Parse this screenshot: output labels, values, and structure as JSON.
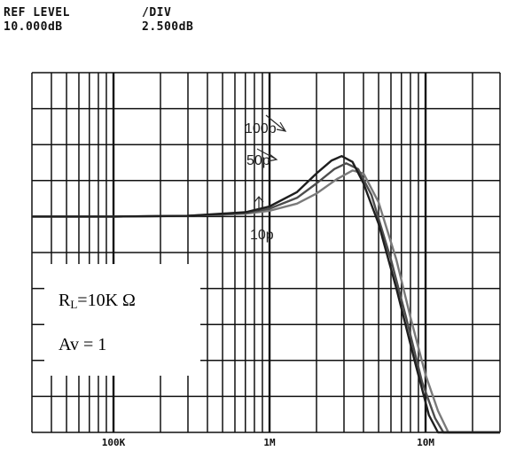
{
  "header": {
    "ref_level_label": "REF LEVEL",
    "ref_level_value": "10.000dB",
    "div_label": "/DIV",
    "div_value": "2.500dB"
  },
  "annotation": {
    "rl_symbol": "R",
    "rl_sub": "L",
    "rl_value": "=10K Ω",
    "av_text": "Av = 1"
  },
  "colors": {
    "grid": "#111111",
    "series_10p": "#7a7a7a",
    "series_50p": "#4d4d4d",
    "series_100p": "#1e1e1e"
  },
  "chart_data": {
    "type": "line",
    "title": "",
    "xlabel": "",
    "ylabel": "",
    "x_scale": "log",
    "xlim": [
      30000,
      30000000
    ],
    "ylim": [
      -15,
      10
    ],
    "y_reference_level_db": 10,
    "y_db_per_div": 2.5,
    "x_ticks": [
      {
        "value": 100000,
        "label": "100K"
      },
      {
        "value": 1000000,
        "label": "1M"
      },
      {
        "value": 10000000,
        "label": "10M"
      }
    ],
    "grid": true,
    "annotations": [
      "100p",
      "50p",
      "10p"
    ],
    "series": [
      {
        "name": "10p",
        "x": [
          30000,
          100000,
          300000,
          700000,
          1000000,
          1500000,
          2000000,
          2700000,
          3400000,
          4000000,
          5000000,
          6500000,
          8000000,
          10000000,
          12000000,
          14000000,
          20000000,
          30000000
        ],
        "y": [
          0,
          0,
          0.05,
          0.2,
          0.4,
          0.9,
          1.6,
          2.6,
          3.2,
          3.0,
          1.0,
          -3.0,
          -7.0,
          -11.0,
          -13.5,
          -15.0,
          -15.0,
          -15.0
        ]
      },
      {
        "name": "50p",
        "x": [
          30000,
          100000,
          300000,
          700000,
          1000000,
          1500000,
          2000000,
          2600000,
          3100000,
          3700000,
          4500000,
          6000000,
          7500000,
          9500000,
          11500000,
          13000000,
          20000000,
          30000000
        ],
        "y": [
          0,
          0,
          0.05,
          0.25,
          0.55,
          1.3,
          2.3,
          3.3,
          3.7,
          3.3,
          1.5,
          -3.0,
          -7.0,
          -11.5,
          -14.0,
          -15.0,
          -15.0,
          -15.0
        ]
      },
      {
        "name": "100p",
        "x": [
          30000,
          100000,
          300000,
          700000,
          1000000,
          1500000,
          2000000,
          2500000,
          2900000,
          3400000,
          4000000,
          5000000,
          6500000,
          8500000,
          10500000,
          12000000,
          20000000,
          30000000
        ],
        "y": [
          0,
          0,
          0.05,
          0.3,
          0.7,
          1.7,
          3.0,
          3.9,
          4.2,
          3.8,
          2.3,
          -0.5,
          -5.0,
          -10.0,
          -13.8,
          -15.0,
          -15.0,
          -15.0
        ]
      }
    ]
  }
}
